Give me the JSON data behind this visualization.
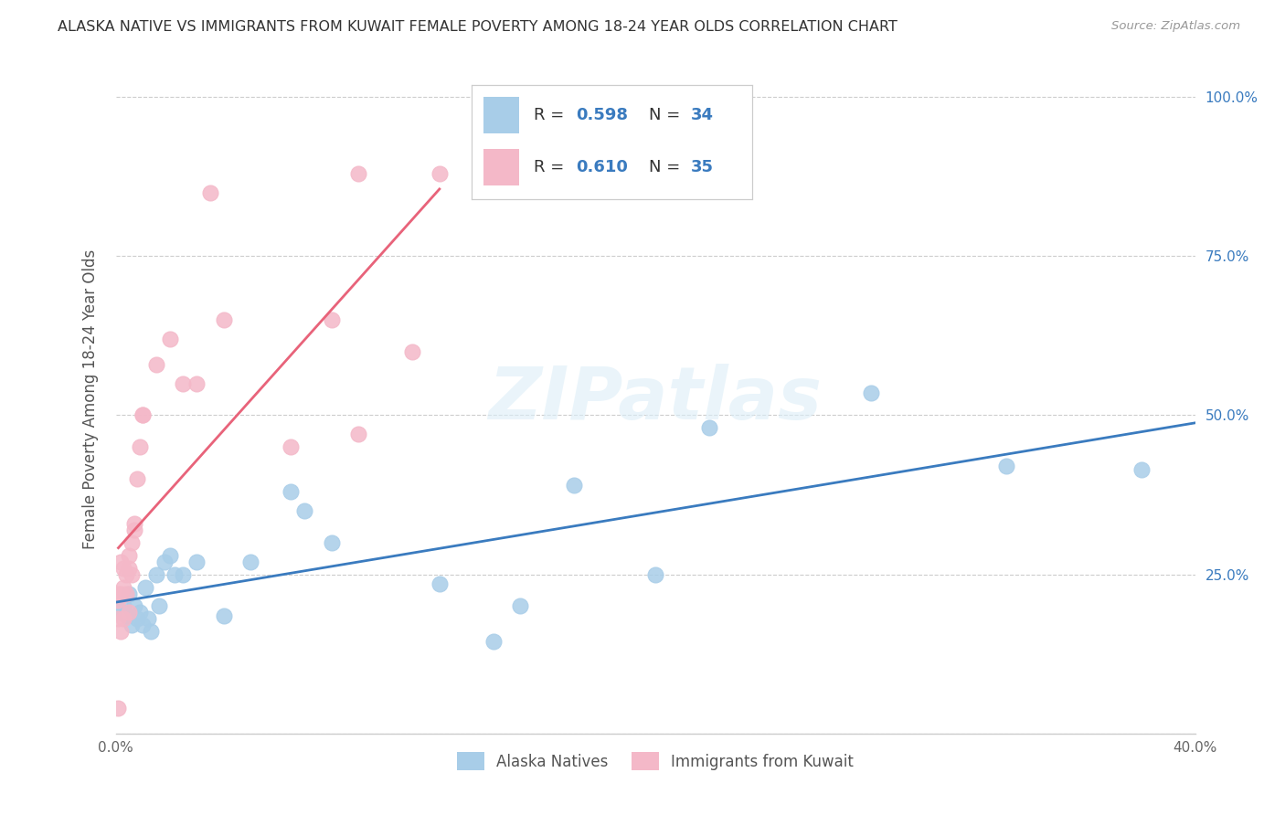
{
  "title": "ALASKA NATIVE VS IMMIGRANTS FROM KUWAIT FEMALE POVERTY AMONG 18-24 YEAR OLDS CORRELATION CHART",
  "source": "Source: ZipAtlas.com",
  "ylabel": "Female Poverty Among 18-24 Year Olds",
  "legend_blue_R": "0.598",
  "legend_blue_N": "34",
  "legend_pink_R": "0.610",
  "legend_pink_N": "35",
  "legend_label_blue": "Alaska Natives",
  "legend_label_pink": "Immigrants from Kuwait",
  "blue_color": "#a8cde8",
  "pink_color": "#f4b8c8",
  "line_blue_color": "#3a7bbf",
  "line_pink_color": "#e8637a",
  "text_blue_color": "#3a7bbf",
  "title_color": "#333333",
  "watermark": "ZIPatlas",
  "blue_x": [
    0.001,
    0.002,
    0.003,
    0.004,
    0.005,
    0.006,
    0.007,
    0.008,
    0.009,
    0.01,
    0.011,
    0.012,
    0.013,
    0.015,
    0.016,
    0.018,
    0.02,
    0.022,
    0.025,
    0.03,
    0.04,
    0.05,
    0.065,
    0.07,
    0.08,
    0.12,
    0.14,
    0.15,
    0.17,
    0.2,
    0.22,
    0.28,
    0.33,
    0.38
  ],
  "blue_y": [
    0.195,
    0.19,
    0.2,
    0.185,
    0.22,
    0.17,
    0.2,
    0.18,
    0.19,
    0.17,
    0.23,
    0.18,
    0.16,
    0.25,
    0.2,
    0.27,
    0.28,
    0.25,
    0.25,
    0.27,
    0.185,
    0.27,
    0.38,
    0.35,
    0.3,
    0.235,
    0.145,
    0.2,
    0.39,
    0.25,
    0.48,
    0.535,
    0.42,
    0.415
  ],
  "pink_x": [
    0.001,
    0.001,
    0.001,
    0.001,
    0.002,
    0.002,
    0.002,
    0.003,
    0.003,
    0.003,
    0.004,
    0.004,
    0.005,
    0.005,
    0.005,
    0.006,
    0.006,
    0.007,
    0.007,
    0.008,
    0.009,
    0.01,
    0.01,
    0.015,
    0.02,
    0.025,
    0.03,
    0.035,
    0.065,
    0.08,
    0.09,
    0.09,
    0.11,
    0.12,
    0.04
  ],
  "pink_y": [
    0.04,
    0.18,
    0.21,
    0.22,
    0.16,
    0.22,
    0.27,
    0.18,
    0.23,
    0.26,
    0.22,
    0.25,
    0.19,
    0.26,
    0.28,
    0.25,
    0.3,
    0.32,
    0.33,
    0.4,
    0.45,
    0.5,
    0.5,
    0.58,
    0.62,
    0.55,
    0.55,
    0.85,
    0.45,
    0.65,
    0.47,
    0.88,
    0.6,
    0.88,
    0.65
  ],
  "xlim": [
    0.0,
    0.4
  ],
  "ylim": [
    0.0,
    1.05
  ],
  "xtick_vals": [
    0.0,
    0.05,
    0.1,
    0.15,
    0.2,
    0.25,
    0.3,
    0.35,
    0.4
  ],
  "ytick_vals": [
    0.0,
    0.25,
    0.5,
    0.75,
    1.0
  ],
  "ytick_labels": [
    "",
    "25.0%",
    "50.0%",
    "75.0%",
    "100.0%"
  ],
  "grid_color": "#cccccc",
  "background_color": "#ffffff"
}
